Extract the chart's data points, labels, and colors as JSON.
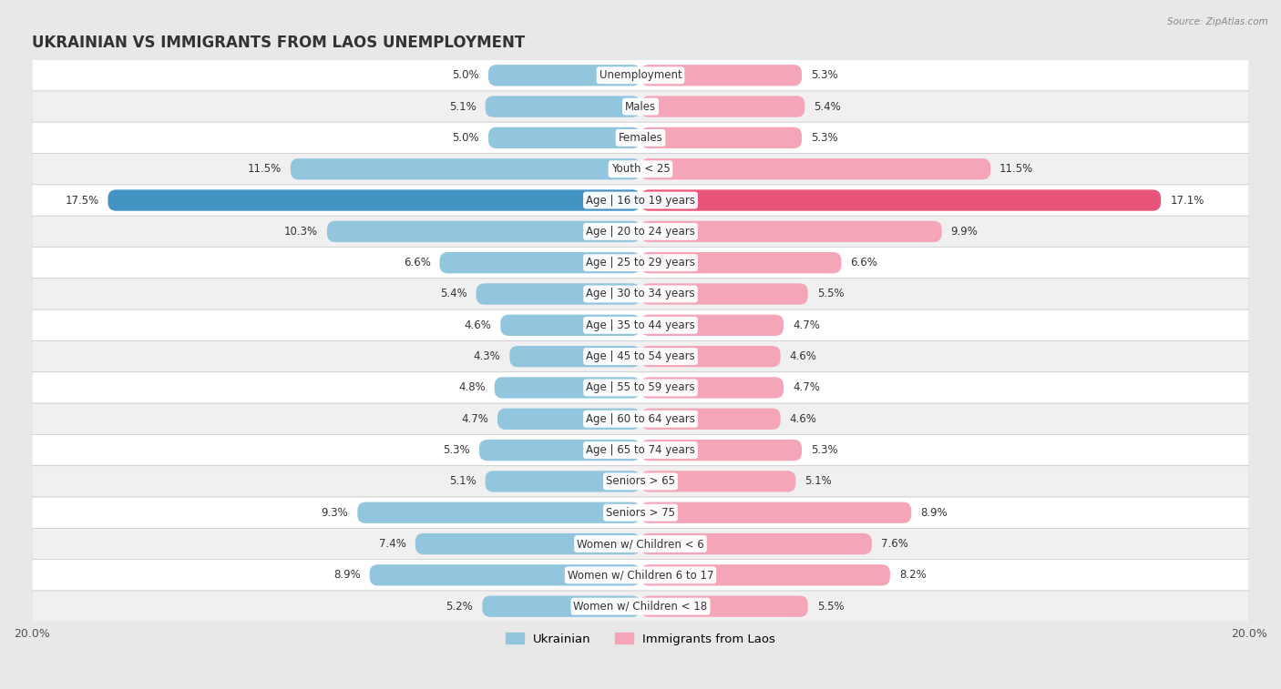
{
  "title": "UKRAINIAN VS IMMIGRANTS FROM LAOS UNEMPLOYMENT",
  "source": "Source: ZipAtlas.com",
  "categories": [
    "Unemployment",
    "Males",
    "Females",
    "Youth < 25",
    "Age | 16 to 19 years",
    "Age | 20 to 24 years",
    "Age | 25 to 29 years",
    "Age | 30 to 34 years",
    "Age | 35 to 44 years",
    "Age | 45 to 54 years",
    "Age | 55 to 59 years",
    "Age | 60 to 64 years",
    "Age | 65 to 74 years",
    "Seniors > 65",
    "Seniors > 75",
    "Women w/ Children < 6",
    "Women w/ Children 6 to 17",
    "Women w/ Children < 18"
  ],
  "ukrainian_values": [
    5.0,
    5.1,
    5.0,
    11.5,
    17.5,
    10.3,
    6.6,
    5.4,
    4.6,
    4.3,
    4.8,
    4.7,
    5.3,
    5.1,
    9.3,
    7.4,
    8.9,
    5.2
  ],
  "laos_values": [
    5.3,
    5.4,
    5.3,
    11.5,
    17.1,
    9.9,
    6.6,
    5.5,
    4.7,
    4.6,
    4.7,
    4.6,
    5.3,
    5.1,
    8.9,
    7.6,
    8.2,
    5.5
  ],
  "ukrainian_color": "#92c5de",
  "laos_color": "#f4a6b8",
  "highlight_ukrainian_color": "#4393c3",
  "highlight_laos_color": "#e8547a",
  "highlight_row": 4,
  "axis_limit": 20.0,
  "background_color": "#e8e8e8",
  "row_bg_white": "#ffffff",
  "row_bg_gray": "#f0f0f0",
  "label_fontsize": 8.5,
  "title_fontsize": 12,
  "legend_labels": [
    "Ukrainian",
    "Immigrants from Laos"
  ]
}
